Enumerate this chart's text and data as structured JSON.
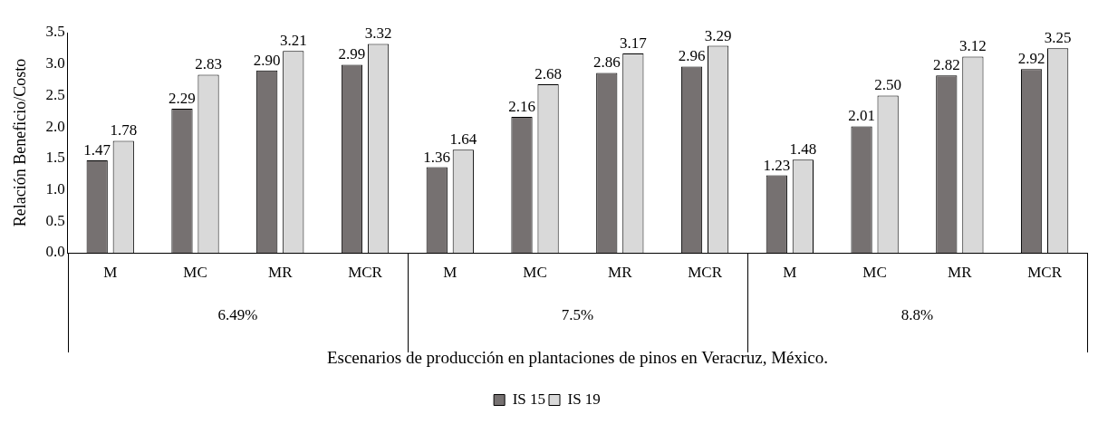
{
  "chart_data": {
    "type": "bar",
    "xlabel": "Escenarios de producción en plantaciones de pinos en Veracruz, México.",
    "ylabel": "Relación Beneficio/Costo",
    "categories": [
      "M",
      "MC",
      "MR",
      "MCR",
      "M",
      "MC",
      "MR",
      "MCR",
      "M",
      "MC",
      "MR",
      "MCR"
    ],
    "annotations": [
      "6.49%",
      "7.5%",
      "8.8%"
    ],
    "series": [
      {
        "name": "IS 15",
        "color": "#767171",
        "values": [
          1.47,
          2.29,
          2.9,
          2.99,
          1.36,
          2.16,
          2.86,
          2.96,
          1.23,
          2.01,
          2.82,
          2.92
        ],
        "value_labels": [
          "1.47",
          "2.29",
          "2.90",
          "2.99",
          "1.36",
          "2.16",
          "2.86",
          "2.96",
          "1.23",
          "2.01",
          "2.82",
          "2.92"
        ]
      },
      {
        "name": "IS 19",
        "color": "#d9d9d9",
        "values": [
          1.78,
          2.83,
          3.21,
          3.32,
          1.64,
          2.68,
          3.17,
          3.29,
          1.48,
          2.5,
          3.12,
          3.25
        ],
        "value_labels": [
          "1.78",
          "2.83",
          "3.21",
          "3.32",
          "1.64",
          "2.68",
          "3.17",
          "3.29",
          "1.48",
          "2.50",
          "3.12",
          "3.25"
        ]
      }
    ],
    "ylim": [
      0,
      3.5
    ],
    "yticks": [
      {
        "value": 0,
        "label": "0.0"
      },
      {
        "value": 0.5,
        "label": "0.5"
      },
      {
        "value": 1,
        "label": "1.0"
      },
      {
        "value": 1.5,
        "label": "1.5"
      },
      {
        "value": 2,
        "label": "2.0"
      },
      {
        "value": 2.5,
        "label": "2.5"
      },
      {
        "value": 3,
        "label": "3.0"
      },
      3.5
    ],
    "grid": false,
    "legend": "bottom"
  }
}
